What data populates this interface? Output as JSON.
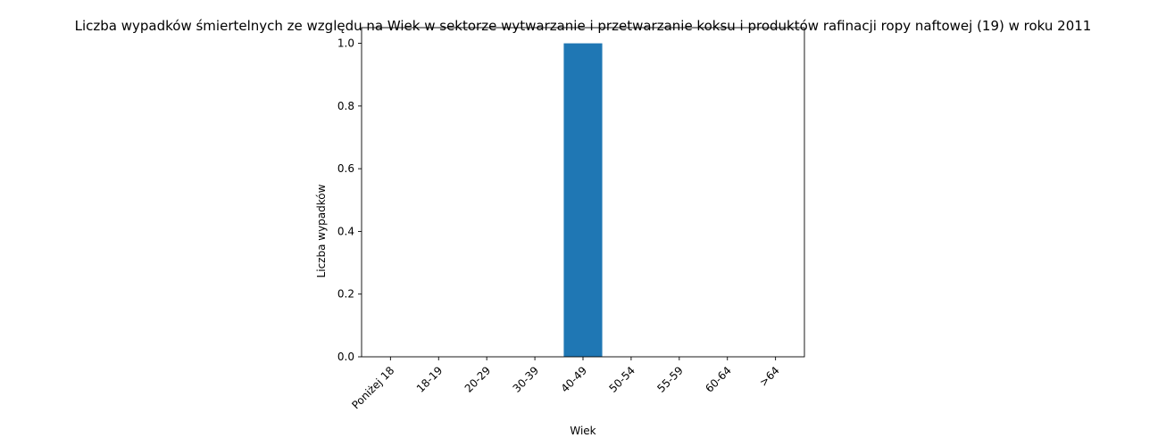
{
  "chart_data": {
    "type": "bar",
    "title": "Liczba wypadków śmiertelnych ze względu na Wiek w sektorze wytwarzanie i przetwarzanie koksu i produktów rafinacji ropy naftowej  (19)   w roku 2011",
    "xlabel": "Wiek",
    "ylabel": "Liczba wypadków",
    "categories": [
      "Poniżej 18",
      "18-19",
      "20-29",
      "30-39",
      "40-49",
      "50-54",
      "55-59",
      "60-64",
      ">64"
    ],
    "values": [
      0,
      0,
      0,
      0,
      1,
      0,
      0,
      0,
      0
    ],
    "ylim": [
      0,
      1.05
    ],
    "yticks": [
      "0.0",
      "0.2",
      "0.4",
      "0.6",
      "0.8",
      "1.0"
    ],
    "grid": false,
    "bar_color": "#1f77b4"
  }
}
